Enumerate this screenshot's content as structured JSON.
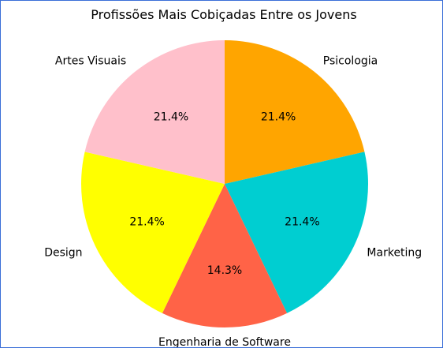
{
  "chart_data": {
    "type": "pie",
    "title": "Profissões Mais Cobiçadas Entre os Jovens",
    "start_angle_deg": 90,
    "direction": "clockwise",
    "slices": [
      {
        "label": "Psicologia",
        "value": 21.4,
        "pct_label": "21.4%",
        "color": "#FFA500"
      },
      {
        "label": "Marketing",
        "value": 21.4,
        "pct_label": "21.4%",
        "color": "#00CED1"
      },
      {
        "label": "Engenharia de Software",
        "value": 14.3,
        "pct_label": "14.3%",
        "color": "#FF6347"
      },
      {
        "label": "Design",
        "value": 21.4,
        "pct_label": "21.4%",
        "color": "#FFFF00"
      },
      {
        "label": "Artes Visuais",
        "value": 21.4,
        "pct_label": "21.4%",
        "color": "#FFC0CB"
      }
    ]
  }
}
